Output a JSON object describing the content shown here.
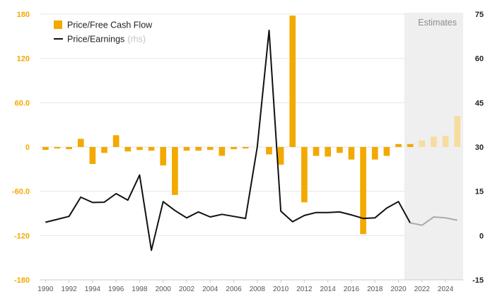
{
  "chart_data": {
    "type": "bar+line",
    "legend": {
      "bar_label": "Price/Free Cash Flow",
      "line_label": "Price/Earnings",
      "line_suffix": "(rhs)",
      "position": "top-left"
    },
    "shaded_region": {
      "label": "Estimates",
      "from_year": 2021,
      "to_year": 2025
    },
    "left_axis": {
      "min": -180,
      "max": 180,
      "ticks": [
        "-180",
        "-120",
        "-60.0",
        "0",
        "60.0",
        "120",
        "180"
      ],
      "tick_values": [
        -180,
        -120,
        -60,
        0,
        60,
        120,
        180
      ]
    },
    "right_axis": {
      "min": -15,
      "max": 75,
      "ticks": [
        "-15",
        "0",
        "15",
        "30",
        "45",
        "60",
        "75"
      ],
      "tick_values": [
        -15,
        0,
        15,
        30,
        45,
        60,
        75
      ]
    },
    "x_ticks": [
      "1990",
      "1992",
      "1994",
      "1996",
      "1998",
      "2000",
      "2002",
      "2004",
      "2006",
      "2008",
      "2010",
      "2012",
      "2014",
      "2016",
      "2018",
      "2020",
      "2022",
      "2024"
    ],
    "x_tick_values": [
      1990,
      1992,
      1994,
      1996,
      1998,
      2000,
      2002,
      2004,
      2006,
      2008,
      2010,
      2012,
      2014,
      2016,
      2018,
      2020,
      2022,
      2024
    ],
    "series": [
      {
        "name": "Price/Free Cash Flow",
        "axis": "left",
        "kind": "bar",
        "x": [
          1990,
          1991,
          1992,
          1993,
          1994,
          1995,
          1996,
          1997,
          1998,
          1999,
          2000,
          2001,
          2002,
          2003,
          2004,
          2005,
          2006,
          2007,
          2008,
          2009,
          2010,
          2011,
          2012,
          2013,
          2014,
          2015,
          2016,
          2017,
          2018,
          2019,
          2020,
          2021,
          2022,
          2023,
          2024,
          2025
        ],
        "values": [
          -4,
          -2,
          -3,
          11,
          -23,
          -8,
          16,
          -6,
          -4,
          -5,
          -25,
          -65,
          -5,
          -5,
          -4,
          -12,
          -3,
          -2,
          0,
          -10,
          -24,
          178,
          -75,
          -12,
          -13,
          -8,
          -17,
          -118,
          -17,
          -12,
          4,
          4,
          9,
          14,
          15,
          42
        ],
        "estimate_from": 2022,
        "color": "#f2a900",
        "estimate_color": "#f7dca0"
      },
      {
        "name": "Price/Earnings",
        "axis": "right",
        "kind": "line",
        "x": [
          1990,
          1991,
          1992,
          1993,
          1994,
          1995,
          1996,
          1997,
          1998,
          1999,
          2000,
          2001,
          2002,
          2003,
          2004,
          2005,
          2006,
          2007,
          2008,
          2009,
          2010,
          2011,
          2012,
          2013,
          2014,
          2015,
          2016,
          2017,
          2018,
          2019,
          2020,
          2021,
          2022,
          2023,
          2024,
          2025
        ],
        "values": [
          4.5,
          5.5,
          6.5,
          13,
          11.2,
          11.3,
          14.2,
          12,
          20.5,
          -5,
          11.5,
          8.5,
          6,
          8,
          6.3,
          7.2,
          6.5,
          5.8,
          30,
          69.5,
          8.3,
          4.7,
          6.8,
          7.8,
          7.8,
          8,
          7,
          5.8,
          6,
          9.3,
          11.5,
          4.3,
          3.5,
          6.3,
          6,
          5.2
        ],
        "estimate_from": 2021,
        "color": "#111111",
        "estimate_color": "#aaaaaa"
      }
    ],
    "grid": "horizontal"
  }
}
